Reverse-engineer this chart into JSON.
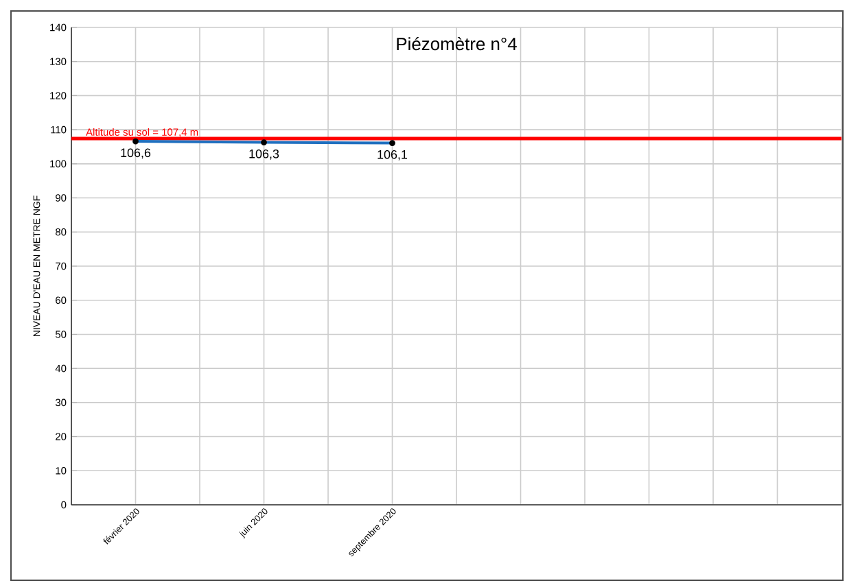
{
  "chart_data": {
    "type": "line",
    "title": "Piézomètre n°4",
    "ylabel": "NIVEAU D'EAU EN METRE NGF",
    "categories": [
      "février 2020",
      "juin 2020",
      "septembre 2020",
      null,
      null,
      null
    ],
    "series": [
      {
        "color": "#1f6fbf",
        "values": [
          106.6,
          106.3,
          106.1,
          null,
          null,
          null
        ],
        "value_labels": [
          "106,6",
          "106,3",
          "106,1",
          null,
          null,
          null
        ]
      }
    ],
    "ylim": [
      0,
      140
    ],
    "yticks": [
      0,
      10,
      20,
      30,
      40,
      50,
      60,
      70,
      80,
      90,
      100,
      110,
      120,
      130,
      140
    ],
    "ref_lines": [
      {
        "axis": "y",
        "value": 107.4,
        "label": "Altitude  su sol = 107,4 m",
        "color": "#ff0000"
      }
    ],
    "grid": true,
    "marker": "circle"
  }
}
